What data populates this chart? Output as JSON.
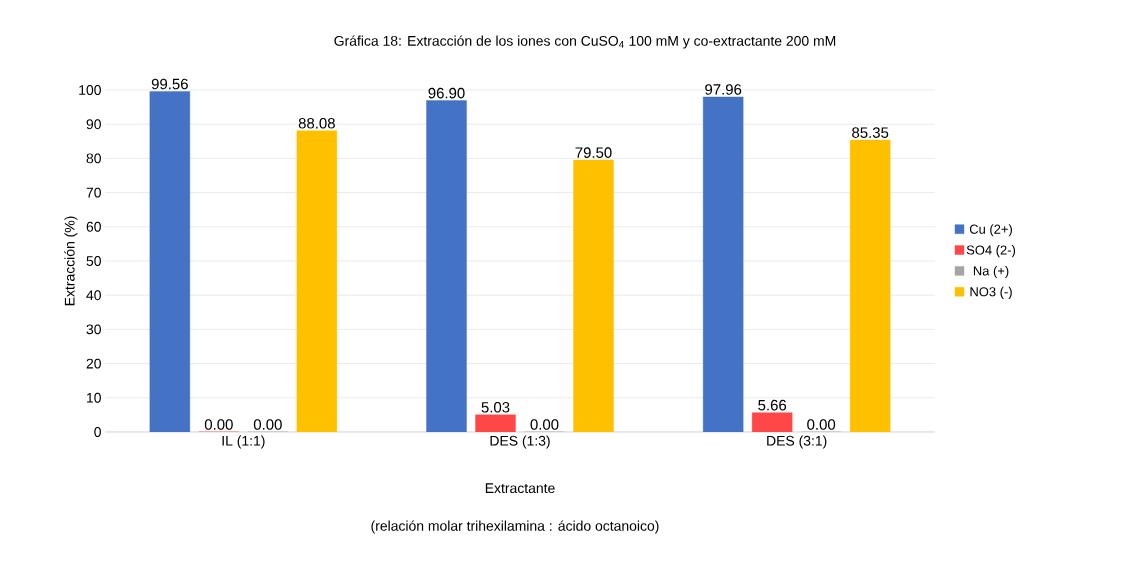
{
  "chart_data": {
    "type": "bar",
    "title": "Gráfica 18: Extracción de los iones con CuSO$_{4}$ 100 mM y co-extractante 200 mM",
    "xlabel": "Extractante",
    "ylabel": "Extracción (%)",
    "annotations": [
      "(relación molar trihexilamina : ácido octanoico)"
    ],
    "categories": [
      "IL (1:1)",
      "DES (1:3)",
      "DES (3:1)"
    ],
    "series": [
      {
        "name": "Cu (2+)",
        "color": "#4472c4",
        "values": [
          99.56,
          96.9,
          97.96
        ],
        "value_labels": [
          "99.56",
          "96.90",
          "97.96"
        ]
      },
      {
        "name": "SO4 (2-)",
        "color": "#ff4747",
        "values": [
          0.0,
          5.03,
          5.66
        ],
        "value_labels": [
          "0.00",
          "5.03",
          "5.66"
        ]
      },
      {
        "name": "Na (+)",
        "color": "#a5a5a5",
        "values": [
          0.0,
          0.0,
          0.0
        ],
        "value_labels": [
          "0.00",
          "0.00",
          "0.00"
        ]
      },
      {
        "name": "NO3 (-)",
        "color": "#ffc000",
        "values": [
          88.08,
          79.5,
          85.35
        ],
        "value_labels": [
          "88.08",
          "79.50",
          "85.35"
        ]
      }
    ],
    "ylim": [
      0,
      100
    ],
    "yticks": [
      0,
      10,
      20,
      30,
      40,
      50,
      60,
      70,
      80,
      90,
      100
    ],
    "grid": "y",
    "legend": "right"
  }
}
